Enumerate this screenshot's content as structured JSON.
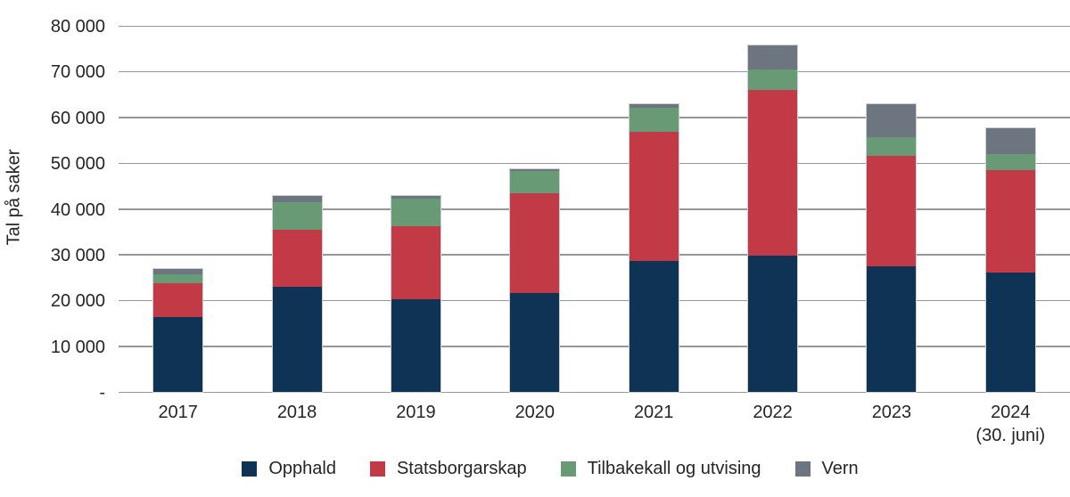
{
  "chart_data": {
    "type": "bar",
    "stacked": true,
    "title": "",
    "xlabel": "",
    "ylabel": "Tal på saker",
    "ylim": [
      0,
      80000
    ],
    "grid": true,
    "legend_position": "bottom",
    "y_ticks": [
      {
        "value": 0,
        "label": "-"
      },
      {
        "value": 10000,
        "label": "10 000"
      },
      {
        "value": 20000,
        "label": "20 000"
      },
      {
        "value": 30000,
        "label": "30 000"
      },
      {
        "value": 40000,
        "label": "40 000"
      },
      {
        "value": 50000,
        "label": "50 000"
      },
      {
        "value": 60000,
        "label": "60 000"
      },
      {
        "value": 70000,
        "label": "70 000"
      },
      {
        "value": 80000,
        "label": "80 000"
      }
    ],
    "categories": [
      "2017",
      "2018",
      "2019",
      "2020",
      "2021",
      "2022",
      "2023",
      "2024"
    ],
    "category_sublabels": [
      "",
      "",
      "",
      "",
      "",
      "",
      "",
      "(30. juni)"
    ],
    "series": [
      {
        "name": "Opphald",
        "color": "#0e3354",
        "values": [
          16500,
          23200,
          20500,
          21800,
          28900,
          30000,
          27600,
          26300
        ]
      },
      {
        "name": "Statsborgarskap",
        "color": "#c33a47",
        "values": [
          7400,
          12500,
          16000,
          21800,
          28100,
          36200,
          24100,
          22400
        ]
      },
      {
        "name": "Tilbakekall og utvising",
        "color": "#689a76",
        "values": [
          2000,
          6000,
          5900,
          4800,
          5300,
          4400,
          4100,
          3400
        ]
      },
      {
        "name": "Vern",
        "color": "#6d7680",
        "values": [
          1400,
          1500,
          800,
          700,
          900,
          5500,
          7400,
          5900
        ]
      }
    ],
    "totals": [
      27300,
      43200,
      43200,
      49100,
      63200,
      76100,
      63200,
      58000
    ]
  },
  "colors": {
    "background": "#ffffff",
    "grid": "#95979a",
    "text": "#252525",
    "bar_outline": "#cdd0d3"
  }
}
